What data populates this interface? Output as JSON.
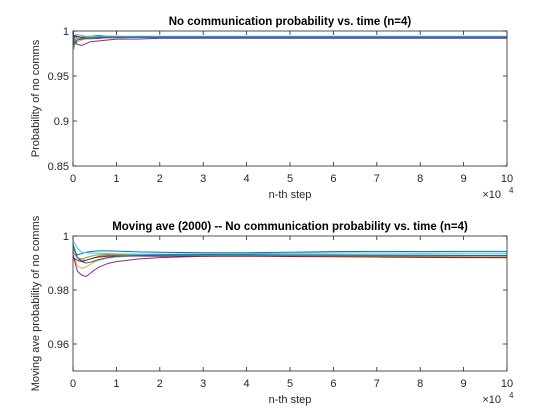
{
  "chart_data": [
    {
      "type": "line",
      "title": "No communication probability vs. time (n=4)",
      "xlabel": "n-th step",
      "ylabel": "Probability of no comms",
      "xlim": [
        0,
        100000
      ],
      "ylim": [
        0.85,
        1.0
      ],
      "x_exponent_label": "10",
      "x_exponent_power": "4",
      "xticks": [
        0,
        10000,
        20000,
        30000,
        40000,
        50000,
        60000,
        70000,
        80000,
        90000,
        100000
      ],
      "xtick_labels": [
        "0",
        "1",
        "2",
        "3",
        "4",
        "5",
        "6",
        "7",
        "8",
        "9",
        "10"
      ],
      "yticks": [
        0.85,
        0.9,
        0.95,
        1.0
      ],
      "ytick_labels": [
        "0.85",
        "0.9",
        "0.95",
        "1"
      ],
      "grid": false,
      "x": [
        0,
        200,
        500,
        1000,
        2000,
        3000,
        4000,
        6000,
        8000,
        10000,
        15000,
        20000,
        30000,
        40000,
        50000,
        60000,
        70000,
        80000,
        90000,
        100000
      ],
      "series": [
        {
          "color": "#0072bd",
          "values": [
            1.0,
            0.985,
            0.995,
            0.992,
            0.993,
            0.994,
            0.994,
            0.995,
            0.994,
            0.994,
            0.994,
            0.994,
            0.994,
            0.994,
            0.994,
            0.994,
            0.994,
            0.994,
            0.994,
            0.994
          ]
        },
        {
          "color": "#d95319",
          "values": [
            1.0,
            0.99,
            0.985,
            0.99,
            0.992,
            0.992,
            0.993,
            0.993,
            0.993,
            0.993,
            0.993,
            0.993,
            0.993,
            0.993,
            0.993,
            0.993,
            0.993,
            0.993,
            0.993,
            0.993
          ]
        },
        {
          "color": "#edb120",
          "values": [
            1.0,
            0.995,
            0.99,
            0.988,
            0.99,
            0.991,
            0.991,
            0.992,
            0.992,
            0.992,
            0.993,
            0.993,
            0.993,
            0.993,
            0.993,
            0.993,
            0.993,
            0.993,
            0.993,
            0.993
          ]
        },
        {
          "color": "#7e2f8e",
          "values": [
            1.0,
            0.995,
            0.99,
            0.985,
            0.984,
            0.986,
            0.988,
            0.989,
            0.99,
            0.991,
            0.991,
            0.992,
            0.992,
            0.992,
            0.992,
            0.992,
            0.992,
            0.992,
            0.992,
            0.992
          ]
        },
        {
          "color": "#77ac30",
          "values": [
            1.0,
            0.98,
            0.99,
            0.992,
            0.993,
            0.993,
            0.993,
            0.994,
            0.994,
            0.994,
            0.993,
            0.993,
            0.993,
            0.993,
            0.993,
            0.993,
            0.993,
            0.993,
            0.993,
            0.993
          ]
        },
        {
          "color": "#4dbeee",
          "values": [
            1.0,
            0.99,
            0.995,
            0.996,
            0.995,
            0.994,
            0.994,
            0.994,
            0.994,
            0.994,
            0.994,
            0.994,
            0.994,
            0.994,
            0.994,
            0.994,
            0.994,
            0.994,
            0.994,
            0.994
          ]
        },
        {
          "color": "#a2142f",
          "values": [
            1.0,
            0.992,
            0.995,
            0.994,
            0.993,
            0.992,
            0.992,
            0.992,
            0.993,
            0.993,
            0.993,
            0.993,
            0.993,
            0.993,
            0.993,
            0.993,
            0.993,
            0.993,
            0.993,
            0.993
          ]
        },
        {
          "color": "#0072bd",
          "values": [
            1.0,
            0.985,
            0.988,
            0.99,
            0.991,
            0.992,
            0.992,
            0.993,
            0.993,
            0.993,
            0.993,
            0.993,
            0.993,
            0.993,
            0.993,
            0.993,
            0.993,
            0.993,
            0.993,
            0.993
          ]
        }
      ]
    },
    {
      "type": "line",
      "title": "Moving ave (2000) -- No communication probability vs. time (n=4)",
      "xlabel": "n-th step",
      "ylabel": "Moving ave probability of no comms",
      "xlim": [
        0,
        100000
      ],
      "ylim": [
        0.95,
        1.0
      ],
      "x_exponent_label": "10",
      "x_exponent_power": "4",
      "xticks": [
        0,
        10000,
        20000,
        30000,
        40000,
        50000,
        60000,
        70000,
        80000,
        90000,
        100000
      ],
      "xtick_labels": [
        "0",
        "1",
        "2",
        "3",
        "4",
        "5",
        "6",
        "7",
        "8",
        "9",
        "10"
      ],
      "yticks": [
        0.96,
        0.98,
        1.0
      ],
      "ytick_labels": [
        "0.96",
        "0.98",
        "1"
      ],
      "grid": false,
      "x": [
        0,
        500,
        1000,
        2000,
        3000,
        4000,
        5000,
        6000,
        8000,
        10000,
        15000,
        20000,
        30000,
        40000,
        50000,
        60000,
        70000,
        80000,
        90000,
        100000
      ],
      "series": [
        {
          "color": "#0072bd",
          "values": [
            0.995,
            0.994,
            0.993,
            0.9935,
            0.994,
            0.9942,
            0.9944,
            0.9945,
            0.9945,
            0.9944,
            0.9941,
            0.994,
            0.9938,
            0.9938,
            0.994,
            0.9942,
            0.9943,
            0.9942,
            0.9943,
            0.9943
          ]
        },
        {
          "color": "#d95319",
          "values": [
            0.994,
            0.993,
            0.992,
            0.991,
            0.991,
            0.9915,
            0.992,
            0.9925,
            0.9928,
            0.993,
            0.993,
            0.993,
            0.993,
            0.993,
            0.9929,
            0.9928,
            0.9928,
            0.9927,
            0.9927,
            0.9927
          ]
        },
        {
          "color": "#edb120",
          "values": [
            0.993,
            0.991,
            0.989,
            0.988,
            0.9885,
            0.9895,
            0.9905,
            0.991,
            0.9918,
            0.9922,
            0.9926,
            0.9928,
            0.9929,
            0.9929,
            0.993,
            0.993,
            0.993,
            0.9929,
            0.9929,
            0.9929
          ]
        },
        {
          "color": "#7e2f8e",
          "values": [
            0.993,
            0.99,
            0.987,
            0.9855,
            0.985,
            0.9862,
            0.9875,
            0.9885,
            0.9898,
            0.9905,
            0.9915,
            0.992,
            0.9925,
            0.9927,
            0.9927,
            0.9925,
            0.9924,
            0.9922,
            0.9921,
            0.992
          ]
        },
        {
          "color": "#77ac30",
          "values": [
            0.996,
            0.994,
            0.992,
            0.9915,
            0.992,
            0.9925,
            0.9928,
            0.993,
            0.9932,
            0.9932,
            0.993,
            0.9928,
            0.9928,
            0.9927,
            0.9926,
            0.9925,
            0.9925,
            0.9925,
            0.9925,
            0.9925
          ]
        },
        {
          "color": "#4dbeee",
          "values": [
            0.998,
            0.997,
            0.9955,
            0.994,
            0.9938,
            0.9937,
            0.9936,
            0.9936,
            0.9935,
            0.9934,
            0.9933,
            0.9933,
            0.9934,
            0.9935,
            0.9936,
            0.9937,
            0.9937,
            0.9936,
            0.9936,
            0.9936
          ]
        },
        {
          "color": "#a2142f",
          "values": [
            0.992,
            0.9915,
            0.991,
            0.9905,
            0.991,
            0.9915,
            0.992,
            0.9922,
            0.9925,
            0.9926,
            0.9926,
            0.9925,
            0.9925,
            0.9925,
            0.9924,
            0.9923,
            0.9922,
            0.9921,
            0.992,
            0.992
          ]
        },
        {
          "color": "#0072bd",
          "values": [
            0.997,
            0.9945,
            0.992,
            0.9905,
            0.99,
            0.9903,
            0.9908,
            0.9913,
            0.992,
            0.9924,
            0.9928,
            0.993,
            0.9931,
            0.9931,
            0.993,
            0.993,
            0.9929,
            0.9929,
            0.9928,
            0.9928
          ]
        }
      ]
    }
  ]
}
